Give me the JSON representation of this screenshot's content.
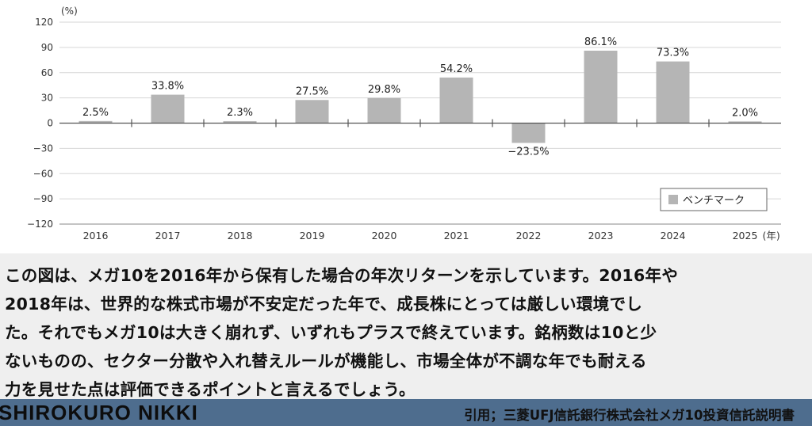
{
  "chart_data": {
    "type": "bar",
    "unit_label": "(%)",
    "x_unit_label": "(年)",
    "categories": [
      "2016",
      "2017",
      "2018",
      "2019",
      "2020",
      "2021",
      "2022",
      "2023",
      "2024",
      "2025"
    ],
    "series": [
      {
        "name": "ベンチマーク",
        "values": [
          2.5,
          33.8,
          2.3,
          27.5,
          29.8,
          54.2,
          -23.5,
          86.1,
          73.3,
          2.0
        ]
      }
    ],
    "data_labels": [
      "2.5%",
      "33.8%",
      "2.3%",
      "27.5%",
      "29.8%",
      "54.2%",
      "−23.5%",
      "86.1%",
      "73.3%",
      "2.0%"
    ],
    "yticks": [
      120,
      90,
      60,
      30,
      0,
      -30,
      -60,
      -90,
      -120
    ],
    "ytick_labels": [
      "120",
      "90",
      "60",
      "30",
      "0",
      "−30",
      "−60",
      "−90",
      "−120"
    ],
    "ylim": [
      -120,
      120
    ],
    "grid": true,
    "legend_position": "bottom-right",
    "bar_color": "#b5b5b5"
  },
  "caption": {
    "lines": [
      "この図は、メガ10を2016年から保有した場合の年次リターンを示しています。2016年や",
      "2018年は、世界的な株式市場が不安定だった年で、成長株にとっては厳しい環境でし",
      "た。それでもメガ10は大きく崩れず、いずれもプラスで終えています。銘柄数は10と少",
      "ないものの、セクター分散や入れ替えルールが機能し、市場全体が不調な年でも耐える",
      "力を見せた点は評価できるポイントと言えるでしょう。"
    ]
  },
  "footer": {
    "brand": "SHIROKURO NIKKI",
    "source": "引用；三菱UFJ信託銀行株式会社メガ10投資信託説明書",
    "background": "#4e6d8e"
  }
}
